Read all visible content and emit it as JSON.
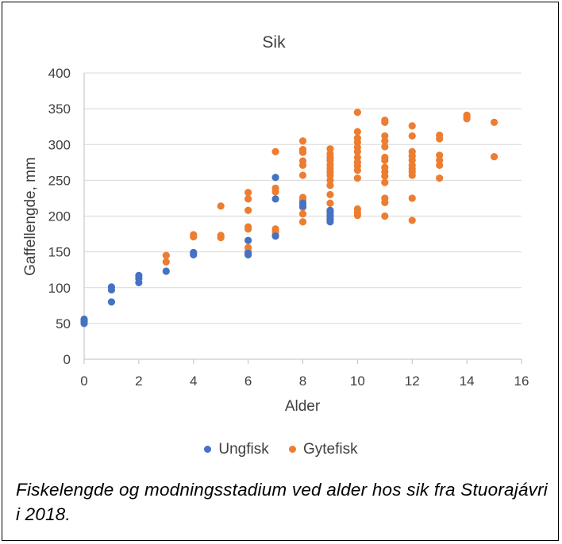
{
  "colors": {
    "Ungfisk": "#4472C4",
    "Gytefisk": "#ED7D31",
    "grid": "#D9D9D9",
    "text": "#404040"
  },
  "caption": "Fiskelengde og modningsstadium ved alder hos sik fra Stuorajávri i 2018.",
  "chart_data": {
    "type": "scatter",
    "title": "Sik",
    "xlabel": "Alder",
    "ylabel": "Gaffellengde, mm",
    "xlim": [
      0,
      16
    ],
    "ylim": [
      0,
      400
    ],
    "xticks": [
      "0",
      "2",
      "4",
      "6",
      "8",
      "10",
      "12",
      "14",
      "16"
    ],
    "yticks": [
      "0",
      "50",
      "100",
      "150",
      "200",
      "250",
      "300",
      "350",
      "400"
    ],
    "grid": "horizontal",
    "legend": "bottom",
    "series": [
      {
        "name": "Ungfisk",
        "points": [
          [
            0,
            56
          ],
          [
            0,
            53
          ],
          [
            0,
            50
          ],
          [
            1,
            101
          ],
          [
            1,
            97
          ],
          [
            1,
            80
          ],
          [
            2,
            117
          ],
          [
            2,
            113
          ],
          [
            2,
            107
          ],
          [
            3,
            123
          ],
          [
            4,
            149
          ],
          [
            4,
            146
          ],
          [
            6,
            166
          ],
          [
            6,
            148
          ],
          [
            6,
            146
          ],
          [
            7,
            254
          ],
          [
            7,
            224
          ],
          [
            7,
            172
          ],
          [
            8,
            218
          ],
          [
            8,
            214
          ],
          [
            9,
            208
          ],
          [
            9,
            204
          ],
          [
            9,
            200
          ],
          [
            9,
            196
          ],
          [
            9,
            192
          ]
        ]
      },
      {
        "name": "Gytefisk",
        "points": [
          [
            3,
            145
          ],
          [
            3,
            136
          ],
          [
            4,
            174
          ],
          [
            4,
            171
          ],
          [
            4,
            149
          ],
          [
            5,
            214
          ],
          [
            5,
            173
          ],
          [
            5,
            170
          ],
          [
            6,
            233
          ],
          [
            6,
            224
          ],
          [
            6,
            208
          ],
          [
            6,
            185
          ],
          [
            6,
            182
          ],
          [
            6,
            156
          ],
          [
            6,
            150
          ],
          [
            7,
            290
          ],
          [
            7,
            239
          ],
          [
            7,
            234
          ],
          [
            7,
            182
          ],
          [
            7,
            178
          ],
          [
            7,
            174
          ],
          [
            8,
            305
          ],
          [
            8,
            293
          ],
          [
            8,
            289
          ],
          [
            8,
            277
          ],
          [
            8,
            271
          ],
          [
            8,
            257
          ],
          [
            8,
            226
          ],
          [
            8,
            222
          ],
          [
            8,
            212
          ],
          [
            8,
            203
          ],
          [
            8,
            192
          ],
          [
            9,
            294
          ],
          [
            9,
            287
          ],
          [
            9,
            282
          ],
          [
            9,
            278
          ],
          [
            9,
            272
          ],
          [
            9,
            267
          ],
          [
            9,
            262
          ],
          [
            9,
            257
          ],
          [
            9,
            250
          ],
          [
            9,
            243
          ],
          [
            9,
            230
          ],
          [
            9,
            218
          ],
          [
            9,
            207
          ],
          [
            9,
            201
          ],
          [
            9,
            195
          ],
          [
            10,
            345
          ],
          [
            10,
            318
          ],
          [
            10,
            309
          ],
          [
            10,
            303
          ],
          [
            10,
            296
          ],
          [
            10,
            290
          ],
          [
            10,
            282
          ],
          [
            10,
            275
          ],
          [
            10,
            270
          ],
          [
            10,
            264
          ],
          [
            10,
            253
          ],
          [
            10,
            210
          ],
          [
            10,
            205
          ],
          [
            10,
            201
          ],
          [
            11,
            334
          ],
          [
            11,
            331
          ],
          [
            11,
            312
          ],
          [
            11,
            305
          ],
          [
            11,
            297
          ],
          [
            11,
            282
          ],
          [
            11,
            278
          ],
          [
            11,
            268
          ],
          [
            11,
            262
          ],
          [
            11,
            256
          ],
          [
            11,
            247
          ],
          [
            11,
            225
          ],
          [
            11,
            219
          ],
          [
            11,
            200
          ],
          [
            12,
            326
          ],
          [
            12,
            312
          ],
          [
            12,
            290
          ],
          [
            12,
            284
          ],
          [
            12,
            278
          ],
          [
            12,
            271
          ],
          [
            12,
            266
          ],
          [
            12,
            262
          ],
          [
            12,
            257
          ],
          [
            12,
            225
          ],
          [
            12,
            194
          ],
          [
            13,
            313
          ],
          [
            13,
            308
          ],
          [
            13,
            285
          ],
          [
            13,
            278
          ],
          [
            13,
            271
          ],
          [
            13,
            253
          ],
          [
            14,
            341
          ],
          [
            14,
            338
          ],
          [
            14,
            336
          ],
          [
            15,
            331
          ],
          [
            15,
            283
          ]
        ]
      }
    ]
  }
}
